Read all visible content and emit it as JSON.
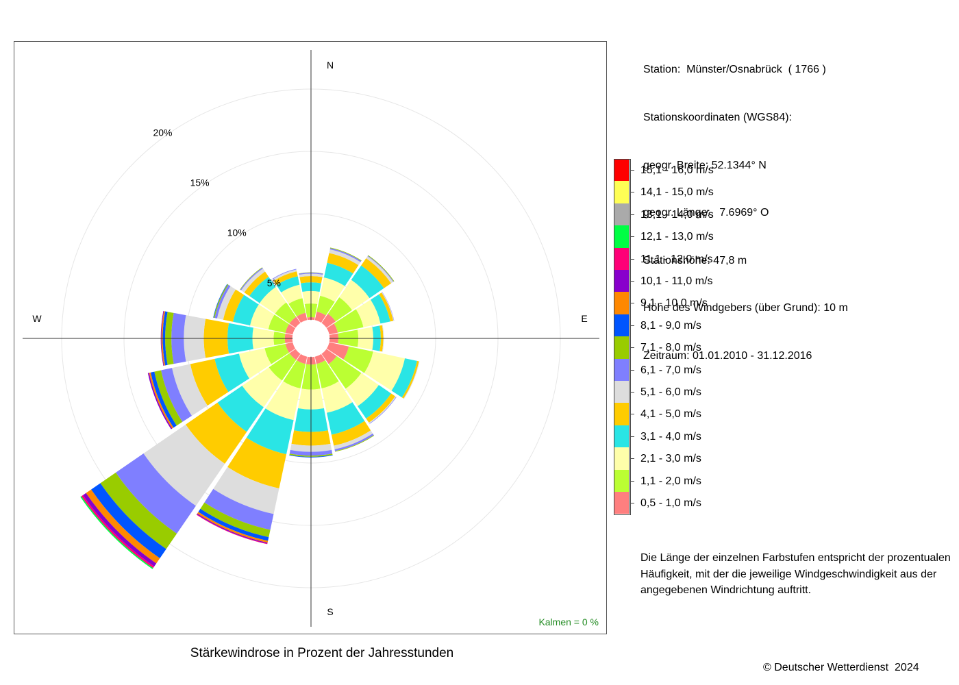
{
  "chart_data": {
    "type": "windrose",
    "title": "Stärkewindrose in Prozent der Jahresstunden",
    "directions": [
      "N",
      "NNO",
      "NO",
      "ONO",
      "O",
      "OSO",
      "SO",
      "SSO",
      "S",
      "SSW",
      "SW",
      "WSW",
      "W",
      "WNW",
      "NW",
      "NNW"
    ],
    "direction_labels": {
      "N": "N",
      "E": "E",
      "S": "S",
      "W": "W"
    },
    "radial_unit": "%",
    "ring_labels": [
      "5%",
      "10%",
      "15%",
      "20%"
    ],
    "ring_values": [
      5,
      10,
      15,
      20
    ],
    "inner_hole_percent": 1.5,
    "kalmen": "Kalmen  =  0 %",
    "speed_classes": [
      {
        "label": "0,5 - 1,0 m/s",
        "color": "#ff7f7f"
      },
      {
        "label": "1,1 - 2,0 m/s",
        "color": "#bbff33"
      },
      {
        "label": "2,1 - 3,0 m/s",
        "color": "#ffffaa"
      },
      {
        "label": "3,1 - 4,0 m/s",
        "color": "#2ae5e5"
      },
      {
        "label": "4,1 - 5,0 m/s",
        "color": "#ffcc00"
      },
      {
        "label": "5,1 - 6,0 m/s",
        "color": "#dddddd"
      },
      {
        "label": "6,1 - 7,0 m/s",
        "color": "#7f7fff"
      },
      {
        "label": "7,1 - 8,0 m/s",
        "color": "#99cc00"
      },
      {
        "label": "8,1 - 9,0 m/s",
        "color": "#0055ff"
      },
      {
        "label": "9,1 - 10,0 m/s",
        "color": "#ff8800"
      },
      {
        "label": "10,1 - 11,0 m/s",
        "color": "#8800cc"
      },
      {
        "label": "11,1 - 12,0 m/s",
        "color": "#ff0077"
      },
      {
        "label": "12,1 - 13,0 m/s",
        "color": "#00ff44"
      },
      {
        "label": "13,1 - 14,0 m/s",
        "color": "#aaaaaa"
      },
      {
        "label": "14,1 - 15,0 m/s",
        "color": "#ffff55"
      },
      {
        "label": "15,1 - 16,0 m/s",
        "color": "#ff0000"
      }
    ],
    "cumulative_percent": [
      [
        0.2,
        1.3,
        2.3,
        3.0,
        3.5,
        3.7,
        3.78,
        3.8
      ],
      [
        0.7,
        2.0,
        3.5,
        4.7,
        5.5,
        5.8,
        5.9,
        5.95
      ],
      [
        0.9,
        2.5,
        4.2,
        5.6,
        6.3,
        6.5,
        6.55,
        6.6
      ],
      [
        0.7,
        2.8,
        4.2,
        5.0,
        5.25,
        5.3,
        5.32
      ],
      [
        0.7,
        2.3,
        3.5,
        4.1,
        4.3,
        4.35
      ],
      [
        1.6,
        3.6,
        6.2,
        7.2,
        7.35,
        7.4
      ],
      [
        1.0,
        3.4,
        5.1,
        6.3,
        6.7,
        6.78,
        6.82
      ],
      [
        0.6,
        2.6,
        4.6,
        6.4,
        7.3,
        7.6,
        7.75,
        7.8
      ],
      [
        0.6,
        2.6,
        4.2,
        6.0,
        7.1,
        7.6,
        7.9,
        8.0,
        8.05
      ],
      [
        0.6,
        2.6,
        5.2,
        8.0,
        10.8,
        12.9,
        14.2,
        14.8,
        15.1,
        15.25,
        15.33,
        15.37
      ],
      [
        0.6,
        2.6,
        5.2,
        7.6,
        10.7,
        14.8,
        17.5,
        19.0,
        19.9,
        20.4,
        20.7,
        20.85,
        20.95
      ],
      [
        0.6,
        2.3,
        4.4,
        6.4,
        8.4,
        9.9,
        10.8,
        11.35,
        11.65,
        11.78,
        11.88
      ],
      [
        0.6,
        1.5,
        3.2,
        5.2,
        7.1,
        8.7,
        9.7,
        10.2,
        10.4,
        10.5,
        10.55
      ],
      [
        0.6,
        2.0,
        3.5,
        4.9,
        5.7,
        6.2,
        6.4,
        6.48,
        6.52
      ],
      [
        0.6,
        2.0,
        3.5,
        4.5,
        5.0,
        5.3,
        5.38,
        5.42
      ],
      [
        0.6,
        1.8,
        2.9,
        3.6,
        4.0,
        4.15,
        4.2
      ]
    ]
  },
  "station": {
    "lines": [
      "Station:  Münster/Osnabrück  ( 1766 )",
      "Stationskoordinaten (WGS84):",
      "geogr. Breite: 52.1344° N",
      "geogr. Länge:   7.6969° O",
      "Stationshöhe: 47,8 m",
      "Höhe des Windgebers (über Grund): 10 m",
      "Zeitraum: 01.01.2010 - 31.12.2016"
    ]
  },
  "note_lines": [
    "Die Länge der einzelnen Farbstufen entspricht der prozentualen",
    "Häufigkeit, mit der die jeweilige Windgeschwindigkeit aus der",
    "angegebenen Windrichtung auftritt."
  ],
  "copyright": "© Deutscher Wetterdienst  2024"
}
